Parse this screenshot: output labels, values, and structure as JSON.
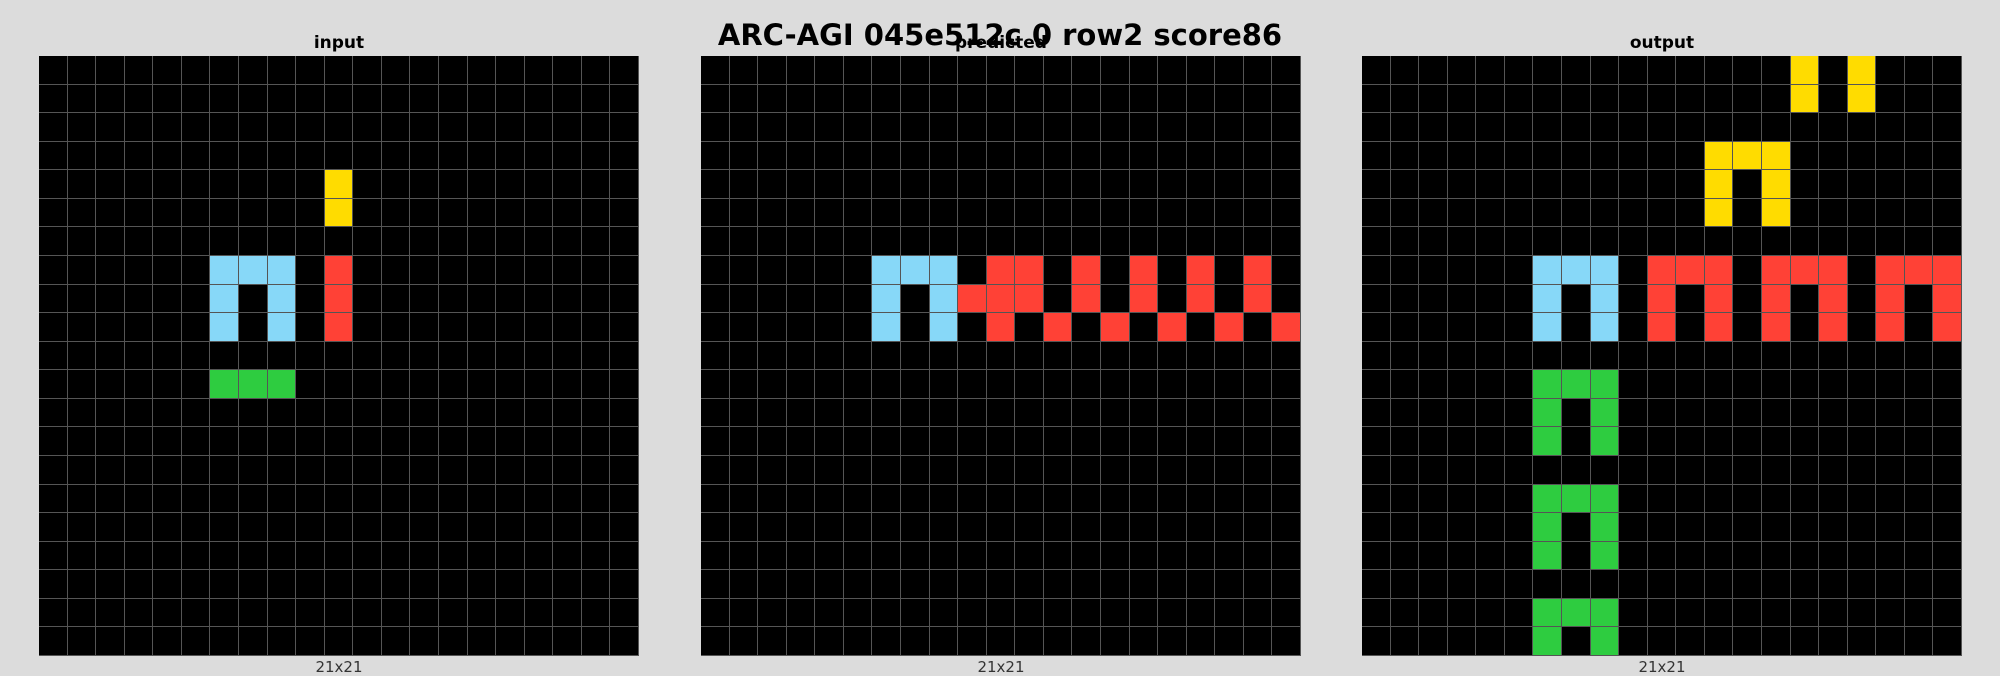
{
  "title": "ARC-AGI 045e512c 0 row2 score86",
  "palette": {
    "0": "#000000",
    "1": "#87d8f8",
    "2": "#ff4136",
    "3": "#2ecc40",
    "4": "#ffdc00"
  },
  "panels": [
    {
      "label": "input",
      "dims": "21x21",
      "rows": [
        "000000000000000000000",
        "000000000000000000000",
        "000000000000000000000",
        "000000000000000000000",
        "000000000040000000000",
        "000000000040000000000",
        "000000000000000000000",
        "000000111020000000000",
        "000000101020000000000",
        "000000101020000000000",
        "000000000000000000000",
        "000000333000000000000",
        "000000000000000000000",
        "000000000000000000000",
        "000000000000000000000",
        "000000000000000000000",
        "000000000000000000000",
        "000000000000000000000",
        "000000000000000000000",
        "000000000000000000000",
        "000000000000000000000"
      ]
    },
    {
      "label": "predicted",
      "dims": "21x21",
      "rows": [
        "000000000000000000000",
        "000000000000000000000",
        "000000000000000000000",
        "000000000000000000000",
        "000000000000000000000",
        "000000000000000000000",
        "000000000000000000000",
        "000000111022020202020",
        "000000101222020202020",
        "000000101020202020202",
        "000000000000000000000",
        "000000000000000000000",
        "000000000000000000000",
        "000000000000000000000",
        "000000000000000000000",
        "000000000000000000000",
        "000000000000000000000",
        "000000000000000000000",
        "000000000000000000000",
        "000000000000000000000",
        "000000000000000000000"
      ]
    },
    {
      "label": "output",
      "dims": "21x21",
      "rows": [
        "000000000000000404000",
        "000000000000000404000",
        "000000000000000000000",
        "000000000000444000000",
        "000000000000404000000",
        "000000000000404000000",
        "000000000000000000000",
        "000000111022202220222",
        "000000101020202020202",
        "000000101020202020202",
        "000000000000000000000",
        "000000333000000000000",
        "000000303000000000000",
        "000000303000000000000",
        "000000000000000000000",
        "000000333000000000000",
        "000000303000000000000",
        "000000303000000000000",
        "000000000000000000000",
        "000000333000000000000",
        "000000303000000000000"
      ]
    }
  ]
}
